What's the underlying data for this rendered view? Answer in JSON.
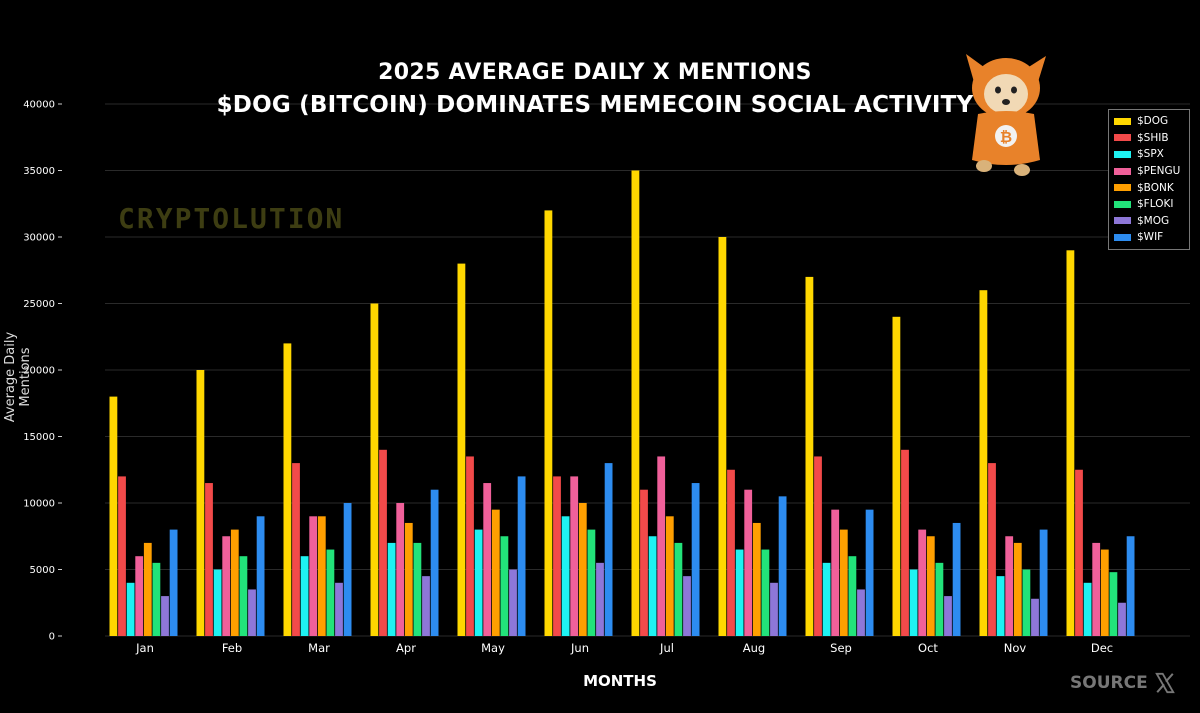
{
  "title_line1": "2025 AVERAGE DAILY X MENTIONS",
  "title_line2": "$DOG (BITCOIN) DOMINATES MEMECOIN SOCIAL ACTIVITY",
  "watermark": "CRYPTOLUTION",
  "source_label": "SOURCE",
  "source_icon": "x-logo-icon",
  "chart_data": {
    "type": "bar",
    "title": "2025 AVERAGE DAILY X MENTIONS $DOG (BITCOIN) DOMINATES MEMECOIN SOCIAL ACTIVITY",
    "xlabel": "MONTHS",
    "ylabel": "Average Daily Mentions",
    "ylim": [
      0,
      40000
    ],
    "yticks": [
      0,
      5000,
      10000,
      15000,
      20000,
      25000,
      30000,
      35000,
      40000
    ],
    "grid": true,
    "legend_position": "top-right",
    "categories": [
      "Jan",
      "Feb",
      "Mar",
      "Apr",
      "May",
      "Jun",
      "Jul",
      "Aug",
      "Sep",
      "Oct",
      "Nov",
      "Dec"
    ],
    "series": [
      {
        "name": "$DOG",
        "color": "#FFD700",
        "values": [
          18000,
          20000,
          22000,
          25000,
          28000,
          32000,
          35000,
          30000,
          27000,
          24000,
          26000,
          29000
        ]
      },
      {
        "name": "$SHIB",
        "color": "#F24A4A",
        "values": [
          12000,
          11500,
          13000,
          14000,
          13500,
          12000,
          11000,
          12500,
          13500,
          14000,
          13000,
          12500
        ]
      },
      {
        "name": "$SPX",
        "color": "#1EF2F2",
        "values": [
          4000,
          5000,
          6000,
          7000,
          8000,
          9000,
          7500,
          6500,
          5500,
          5000,
          4500,
          4000
        ]
      },
      {
        "name": "$PENGU",
        "color": "#F0609A",
        "values": [
          6000,
          7500,
          9000,
          10000,
          11500,
          12000,
          13500,
          11000,
          9500,
          8000,
          7500,
          7000
        ]
      },
      {
        "name": "$BONK",
        "color": "#FF9F00",
        "values": [
          7000,
          8000,
          9000,
          8500,
          9500,
          10000,
          9000,
          8500,
          8000,
          7500,
          7000,
          6500
        ]
      },
      {
        "name": "$FLOKI",
        "color": "#22E37A",
        "values": [
          5500,
          6000,
          6500,
          7000,
          7500,
          8000,
          7000,
          6500,
          6000,
          5500,
          5000,
          4800
        ]
      },
      {
        "name": "$MOG",
        "color": "#8E77D8",
        "values": [
          3000,
          3500,
          4000,
          4500,
          5000,
          5500,
          4500,
          4000,
          3500,
          3000,
          2800,
          2500
        ]
      },
      {
        "name": "$WIF",
        "color": "#2D8CF0",
        "values": [
          8000,
          9000,
          10000,
          11000,
          12000,
          13000,
          11500,
          10500,
          9500,
          8500,
          8000,
          7500
        ]
      }
    ]
  }
}
